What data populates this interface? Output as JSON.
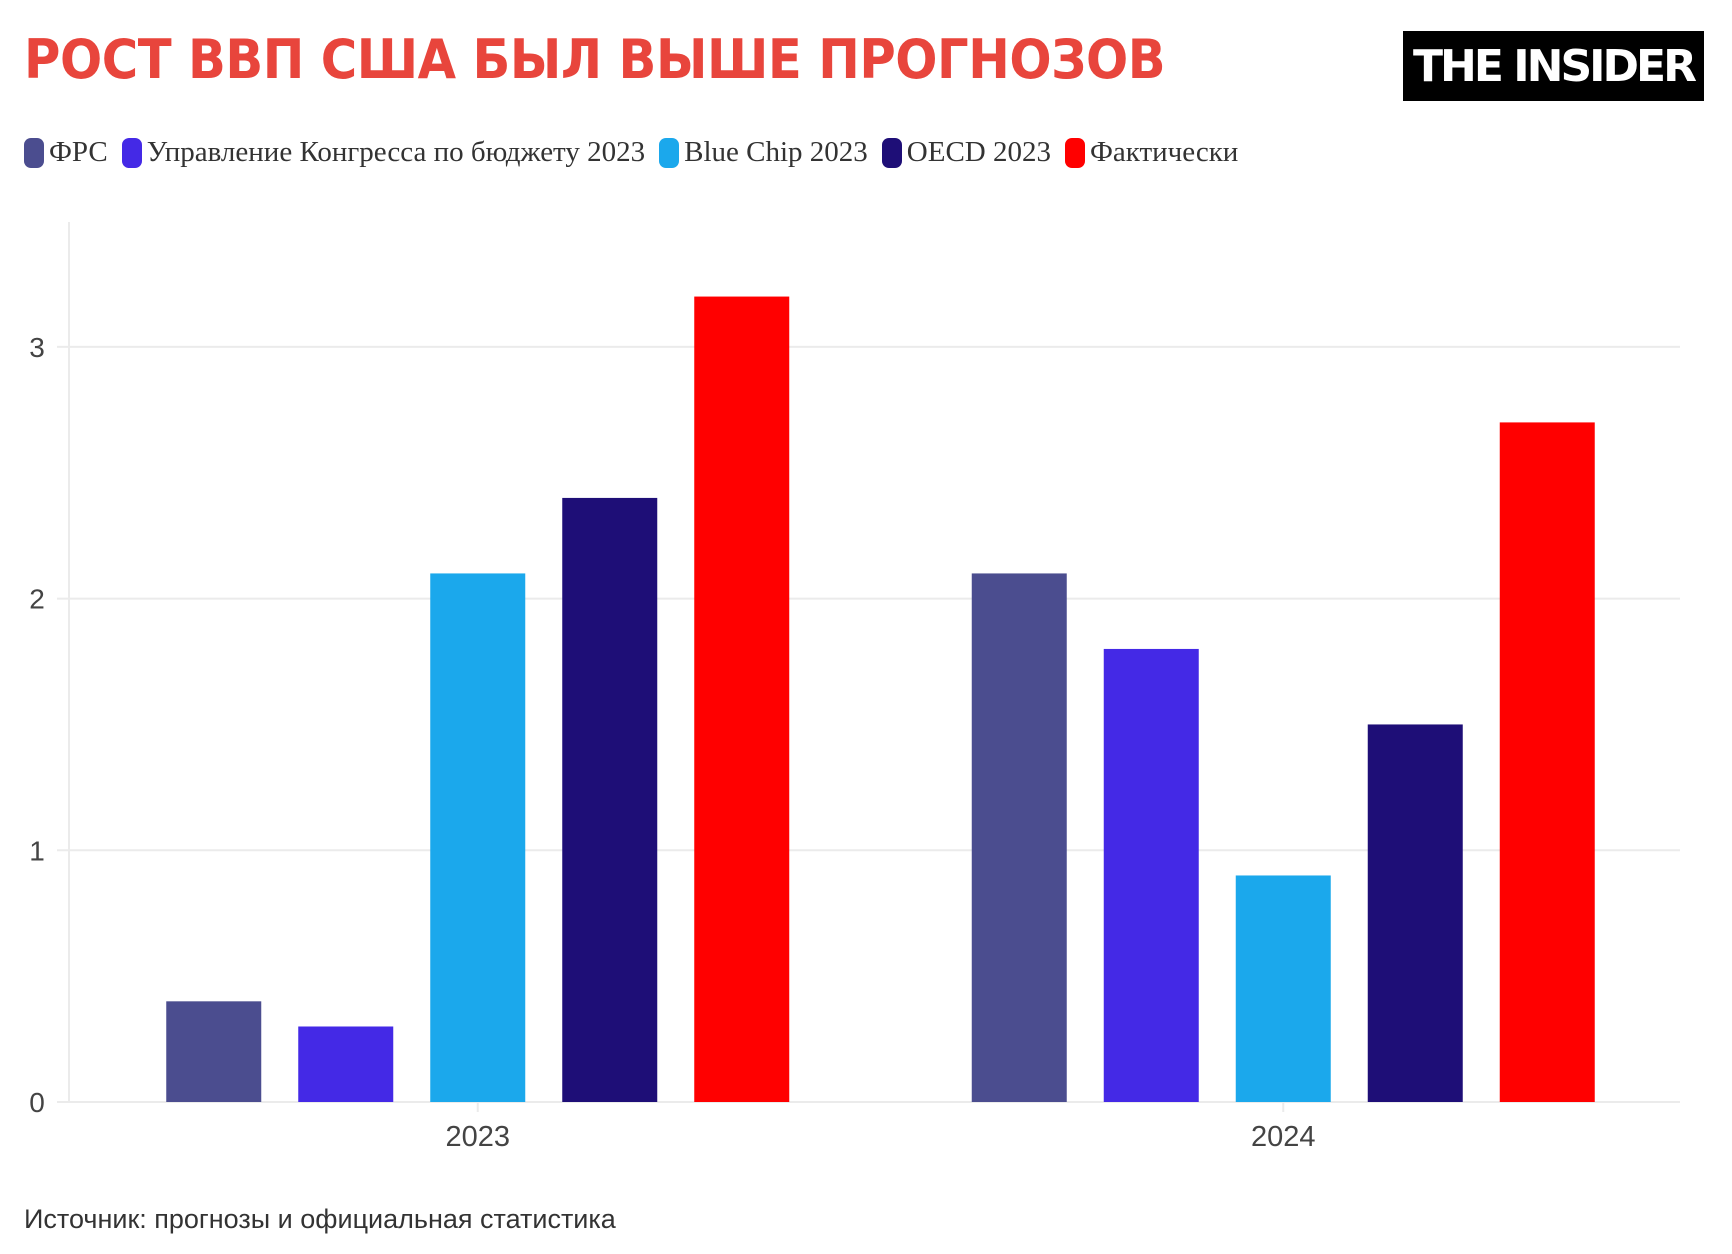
{
  "header": {
    "title": "РОСТ ВВП США БЫЛ ВЫШЕ ПРОГНОЗОВ",
    "logo": "THE INSIDER"
  },
  "footer": {
    "source": "Источник: прогнозы и официальная статистика"
  },
  "chart_data": {
    "type": "bar",
    "title": "РОСТ ВВП США БЫЛ ВЫШЕ ПРОГНОЗОВ",
    "xlabel": "",
    "ylabel": "",
    "categories": [
      "2023",
      "2024"
    ],
    "ylim": [
      0,
      3.5
    ],
    "yticks": [
      0,
      1,
      2,
      3
    ],
    "grid": true,
    "legend_placement": "top-left",
    "series": [
      {
        "name": "ФРС",
        "color": "#4b4d8f",
        "values": [
          0.4,
          2.1
        ]
      },
      {
        "name": "Управление Конгресса по бюджету 2023",
        "color": "#4429e6",
        "values": [
          0.3,
          1.8
        ]
      },
      {
        "name": "Blue Chip 2023",
        "color": "#1ba8ec",
        "values": [
          2.1,
          0.9
        ]
      },
      {
        "name": "OECD 2023",
        "color": "#1e0e77",
        "values": [
          2.4,
          1.5
        ]
      },
      {
        "name": "Фактически",
        "color": "#ff0000",
        "values": [
          3.2,
          2.7
        ]
      }
    ]
  }
}
